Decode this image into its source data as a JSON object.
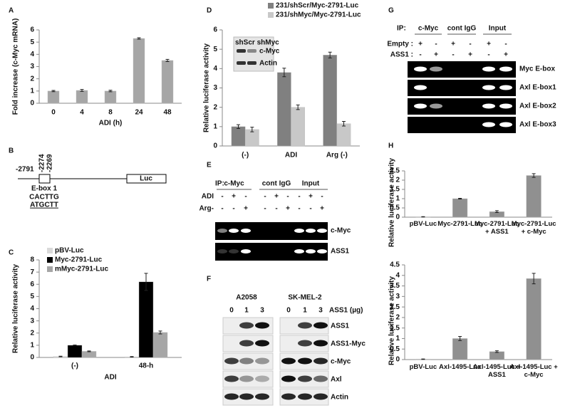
{
  "panel_letters": [
    "A",
    "B",
    "C",
    "D",
    "E",
    "F",
    "G",
    "H"
  ],
  "chart_data": [
    {
      "type": "bar",
      "y_label": "Fold increase (c-Myc mRNA)",
      "x_label": "ADI (h)",
      "categories": [
        "0",
        "4",
        "8",
        "24",
        "48"
      ],
      "values": [
        1,
        1.05,
        1,
        5.3,
        3.5
      ],
      "errors": [
        0.05,
        0.08,
        0.06,
        0.06,
        0.09
      ],
      "color": "#a6a6a6",
      "ylim": [
        0,
        6
      ],
      "yticks": [
        0,
        1,
        2,
        3,
        4,
        5,
        6
      ]
    },
    {
      "type": "bar",
      "y_label": "Relative luciferase activity",
      "x_label": "ADI",
      "categories": [
        "(-)",
        "48-h"
      ],
      "series": [
        {
          "name": "pBV-Luc",
          "color": "#d9d9d9",
          "values": [
            0.08,
            0.05
          ],
          "errors": [
            0.02,
            0.02
          ]
        },
        {
          "name": "Myc-2791-Luc",
          "color": "#000000",
          "values": [
            1,
            6.2
          ],
          "errors": [
            0.02,
            0.7
          ]
        },
        {
          "name": "mMyc-2791-Luc",
          "color": "#a6a6a6",
          "values": [
            0.5,
            2.05
          ],
          "errors": [
            0.03,
            0.12
          ]
        }
      ],
      "ylim": [
        0,
        8
      ],
      "yticks": [
        0,
        1,
        2,
        3,
        4,
        5,
        6,
        7,
        8
      ],
      "legend": "upper left"
    },
    {
      "type": "bar",
      "y_label": "Relative luciferase activity",
      "categories": [
        "(-)",
        "ADI",
        "Arg (-)"
      ],
      "series": [
        {
          "name": "231/shScr/Myc-2791-Luc",
          "color": "#808080",
          "values": [
            1,
            3.8,
            4.7
          ],
          "errors": [
            0.1,
            0.22,
            0.15
          ]
        },
        {
          "name": "231/shMyc/Myc-2791-Luc",
          "color": "#c8c8c8",
          "values": [
            0.85,
            2,
            1.15
          ],
          "errors": [
            0.12,
            0.12,
            0.12
          ]
        }
      ],
      "ylim": [
        0,
        6
      ],
      "yticks": [
        0,
        1,
        2,
        3,
        4,
        5,
        6
      ],
      "legend": "upper right"
    },
    {
      "type": "bar",
      "y_label": "Relative luciferase activity",
      "categories": [
        "pBV-Luc",
        "Myc-2791-Luc",
        "Myc-2791-Luc + ASS1",
        "Myc-2791-Luc + c-Myc"
      ],
      "values": [
        0.02,
        1,
        0.3,
        2.25
      ],
      "errors": [
        0.01,
        0.02,
        0.05,
        0.1
      ],
      "color": "#909090",
      "ylim": [
        0,
        2.5
      ],
      "yticks": [
        0,
        0.5,
        1,
        1.5,
        2,
        2.5
      ]
    },
    {
      "type": "bar",
      "y_label": "Relative luciferase activity",
      "categories": [
        "pBV-Luc",
        "Axl-1495-Luc",
        "Axl-1495-Luc + ASS1",
        "Axl-1495-Luc + c-Myc"
      ],
      "values": [
        0.02,
        1,
        0.38,
        3.85
      ],
      "errors": [
        0.01,
        0.1,
        0.04,
        0.25
      ],
      "color": "#909090",
      "ylim": [
        0,
        4.5
      ],
      "yticks": [
        0,
        0.5,
        1,
        1.5,
        2,
        2.5,
        3,
        3.5,
        4,
        4.5
      ]
    }
  ],
  "diagram_b": {
    "positions": [
      "-2791",
      "-2274",
      "-2269"
    ],
    "element": "E-box 1",
    "reporter": "Luc",
    "wild_sequence": "CACTTG",
    "mutant_sequence": "ATGCTT"
  },
  "blot_d_inset": {
    "lanes": "shScr shMyc",
    "bands": [
      "c-Myc",
      "Actin"
    ]
  },
  "gel_e": {
    "ip_label": "IP:",
    "groups": [
      "c-Myc",
      "cont IgG",
      "Input"
    ],
    "rows": [
      {
        "label": "ADI",
        "signs": [
          "-",
          "+",
          "-",
          "-",
          "+",
          "-",
          "-",
          "+",
          "-"
        ]
      },
      {
        "label": "Arg-",
        "signs": [
          "-",
          "-",
          "+",
          "-",
          "-",
          "+",
          "-",
          "-",
          "+"
        ]
      }
    ],
    "bands": [
      "c-Myc",
      "ASS1"
    ]
  },
  "blot_f": {
    "cell_lines": [
      "A2058",
      "SK-MEL-2"
    ],
    "doses": [
      "0",
      "1",
      "3",
      "0",
      "1",
      "3"
    ],
    "dose_label": "ASS1 (µg)",
    "bands": [
      "ASS1",
      "ASS1-Myc",
      "c-Myc",
      "Axl",
      "Actin"
    ]
  },
  "gel_g": {
    "ip_label": "IP:",
    "groups": [
      "c-Myc",
      "cont IgG",
      "Input"
    ],
    "rows": [
      {
        "label": "Empty :",
        "signs": [
          "+",
          "-",
          "+",
          "-",
          "+",
          "-"
        ]
      },
      {
        "label": "ASS1 :",
        "signs": [
          "-",
          "+",
          "-",
          "+",
          "-",
          "+"
        ]
      }
    ],
    "bands": [
      "Myc E-box",
      "Axl E-box1",
      "Axl E-box2",
      "Axl E-box3"
    ]
  }
}
